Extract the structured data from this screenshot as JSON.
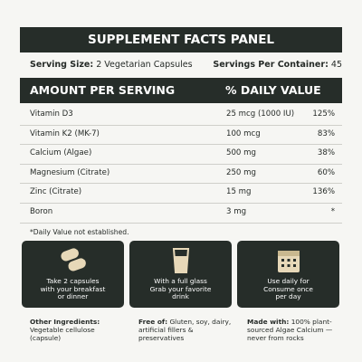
{
  "header": {
    "title": "SUPPLEMENT FACTS PANEL"
  },
  "serving": {
    "size_label": "Serving Size:",
    "size_value": "2 Vegetarian Capsules",
    "servings_label": "Servings Per Container:",
    "servings_value": "45"
  },
  "table": {
    "headers": [
      "AMOUNT PER SERVING",
      "% DAILY VALUE"
    ],
    "rows": [
      [
        "Vitamin D3",
        "25 mcg (1000 IU)",
        "125%"
      ],
      [
        "Vitamin K2 (MK-7)",
        "100 mcg",
        "83%"
      ],
      [
        "Calcium (Algae)",
        "500 mg",
        "38%"
      ],
      [
        "Magnesium (Citrate)",
        "250 mg",
        "60%"
      ],
      [
        "Zinc (Citrate)",
        "15 mg",
        "136%"
      ],
      [
        "Boron",
        "3 mg",
        "*"
      ]
    ]
  },
  "footnote": "*Daily Value not established.",
  "cards": [
    {
      "lines": [
        "Take 2 capsules",
        "with your breakfast",
        "or dinner"
      ]
    },
    {
      "lines": [
        "With a full glass",
        "Grab your favorite",
        "drink"
      ]
    },
    {
      "lines": [
        "Use daily for",
        "Consume once",
        "per day"
      ]
    }
  ],
  "notes": [
    {
      "label": "Other Ingredients:",
      "text": "Vegetable cellulose (capsule)"
    },
    {
      "label": "Free of:",
      "text": "Gluten, soy, dairy, artificial fillers & preservatives"
    },
    {
      "label": "Made with:",
      "text": "100% plant-sourced Algae Calcium — never from rocks"
    }
  ]
}
